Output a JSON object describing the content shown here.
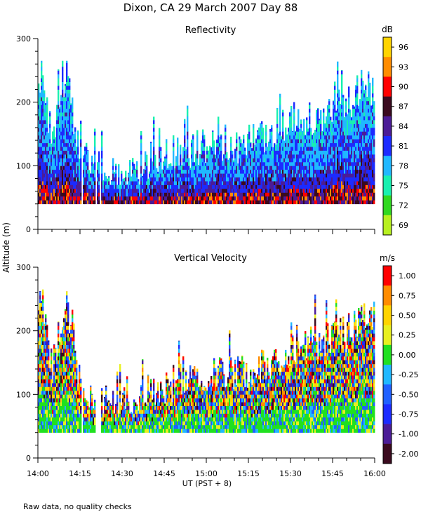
{
  "figure": {
    "title": "Dixon, CA 29 March 2007  Day  88",
    "ylabel": "Altitude (m)",
    "xlabel": "UT  (PST + 8)",
    "footer": "Raw data, no quality checks"
  },
  "chart_data": [
    {
      "type": "heatmap",
      "title": "Reflectivity",
      "ylabel": "Altitude (m)",
      "xlabel": "UT  (PST + 8)",
      "x_range_minutes_ut": [
        840,
        960
      ],
      "x_ticks": [
        "14:00",
        "14:15",
        "14:30",
        "14:45",
        "15:00",
        "15:15",
        "15:30",
        "15:45",
        "16:00"
      ],
      "ylim": [
        0,
        300
      ],
      "y_ticks": [
        0,
        100,
        200,
        300
      ],
      "colorbar": {
        "unit": "dB",
        "labels": [
          "96",
          "93",
          "90",
          "87",
          "84",
          "81",
          "78",
          "75",
          "72",
          "69"
        ],
        "colors": [
          "#FFD400",
          "#FF8C00",
          "#FF0000",
          "#3A0A1E",
          "#4B1C96",
          "#1C2BFF",
          "#20B8FF",
          "#18F0B0",
          "#30D820",
          "#B8F020"
        ]
      },
      "echo_base_m": 40,
      "echo_top_profile_m": {
        "x_minutes_ut": [
          840,
          845,
          850,
          855,
          860,
          865,
          870,
          880,
          890,
          900,
          910,
          920,
          930,
          940,
          950,
          955,
          960
        ],
        "top_m": [
          250,
          150,
          240,
          120,
          100,
          90,
          80,
          110,
          120,
          130,
          130,
          150,
          170,
          180,
          195,
          230,
          220
        ]
      }
    },
    {
      "type": "heatmap",
      "title": "Vertical Velocity",
      "ylabel": "Altitude (m)",
      "xlabel": "UT  (PST + 8)",
      "x_range_minutes_ut": [
        840,
        960
      ],
      "x_ticks": [
        "14:00",
        "14:15",
        "14:30",
        "14:45",
        "15:00",
        "15:15",
        "15:30",
        "15:45",
        "16:00"
      ],
      "ylim": [
        0,
        300
      ],
      "y_ticks": [
        0,
        100,
        200,
        300
      ],
      "colorbar": {
        "unit": "m/s",
        "labels": [
          "1.00",
          "0.75",
          "0.50",
          "0.25",
          "0.00",
          "-0.25",
          "-0.50",
          "-0.75",
          "-1.00",
          "-2.00"
        ],
        "colors": [
          "#FF0000",
          "#FF8C00",
          "#FFD400",
          "#E8F020",
          "#20E020",
          "#20B8FF",
          "#2060FF",
          "#1C2BFF",
          "#4B1C96",
          "#3A0A1E"
        ]
      },
      "echo_base_m": 40,
      "echo_top_profile_m": {
        "x_minutes_ut": [
          840,
          845,
          850,
          855,
          860,
          865,
          870,
          880,
          890,
          900,
          910,
          920,
          930,
          940,
          950,
          955,
          960
        ],
        "top_m": [
          250,
          150,
          240,
          120,
          100,
          90,
          80,
          110,
          120,
          130,
          130,
          150,
          170,
          180,
          195,
          230,
          220
        ]
      }
    }
  ]
}
